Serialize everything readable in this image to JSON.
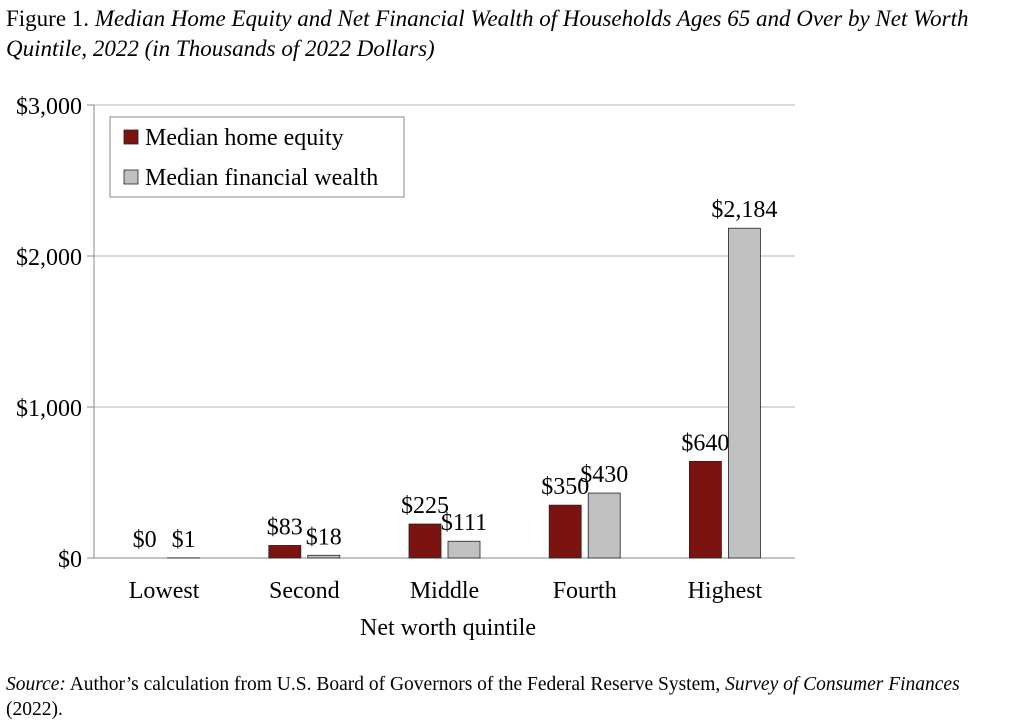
{
  "title": {
    "prefix": "Figure 1. ",
    "text": "Median Home Equity and Net Financial Wealth of Households Ages 65 and Over by Net Worth Quintile, 2022 (in Thousands of 2022 Dollars)"
  },
  "source": {
    "label": "Source:",
    "text_before": " Author’s calculation from U.S. Board of Governors of the Federal Reserve System, ",
    "title": "Survey of Consumer Finances",
    "text_after": " (2022)."
  },
  "chart_data": {
    "type": "bar",
    "title": "Median Home Equity and Net Financial Wealth of Households Ages 65 and Over by Net Worth Quintile, 2022 (in Thousands of 2022 Dollars)",
    "xlabel": "Net worth quintile",
    "ylabel": "",
    "categories": [
      "Lowest",
      "Second",
      "Middle",
      "Fourth",
      "Highest"
    ],
    "series": [
      {
        "name": "Median home equity",
        "color": "#7b1410",
        "values": [
          0,
          83,
          225,
          350,
          640
        ],
        "labels": [
          "$0",
          "$83",
          "$225",
          "$350",
          "$640"
        ]
      },
      {
        "name": "Median financial wealth",
        "color": "#c0c0c0",
        "values": [
          1,
          18,
          111,
          430,
          2184
        ],
        "labels": [
          "$1",
          "$18",
          "$111",
          "$430",
          "$2,184"
        ]
      }
    ],
    "ylim": [
      0,
      3000
    ],
    "yticks": [
      0,
      1000,
      2000,
      3000
    ],
    "ytick_labels": [
      "$0",
      "$1,000",
      "$2,000",
      "$3,000"
    ],
    "grid": true,
    "legend": "top-left"
  }
}
